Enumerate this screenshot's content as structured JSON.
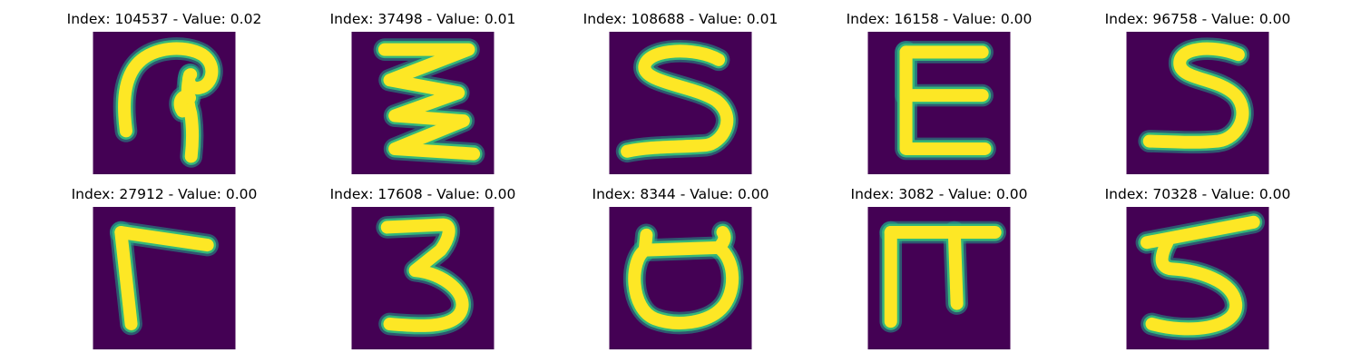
{
  "colors": {
    "background": "#440154",
    "stroke_edge": "#1f9e89",
    "stroke_mid": "#35b779",
    "stroke_core": "#fde725"
  },
  "panels": [
    {
      "title": "Index: 104537 - Value: 0.02",
      "glyph": "hook-loop"
    },
    {
      "title": "Index: 37498 - Value: 0.01",
      "glyph": "zigzag"
    },
    {
      "title": "Index: 108688 - Value: 0.01",
      "glyph": "s-shape"
    },
    {
      "title": "Index: 16158 - Value: 0.00",
      "glyph": "e-shape"
    },
    {
      "title": "Index: 96758 - Value: 0.00",
      "glyph": "five-s"
    },
    {
      "title": "Index: 27912 - Value: 0.00",
      "glyph": "gamma"
    },
    {
      "title": "Index: 17608 - Value: 0.00",
      "glyph": "three"
    },
    {
      "title": "Index: 8344 - Value: 0.00",
      "glyph": "cup"
    },
    {
      "title": "Index: 3082 - Value: 0.00",
      "glyph": "pi"
    },
    {
      "title": "Index: 70328 - Value: 0.00",
      "glyph": "five"
    }
  ]
}
